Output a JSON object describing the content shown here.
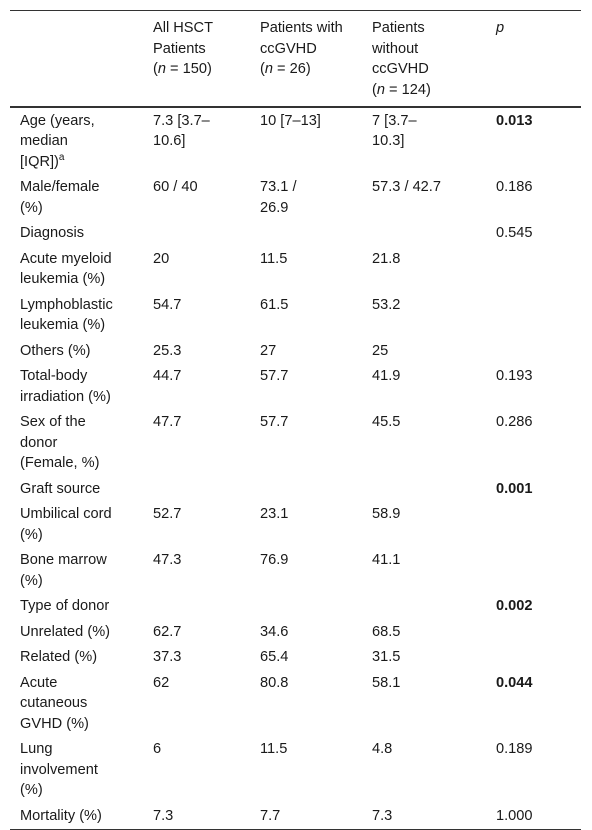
{
  "header": {
    "col0": "",
    "col1": {
      "line1": "All HSCT",
      "line2": "Patients",
      "n_open": "(",
      "n_label": "n",
      "n_value": " = 150)"
    },
    "col2": {
      "line1": "Patients with",
      "line2": "ccGVHD",
      "n_open": "(",
      "n_label": "n",
      "n_value": " = 26)"
    },
    "col3": {
      "line1": "Patients",
      "line2": "without",
      "line3": "ccGVHD",
      "n_open": "(",
      "n_label": "n",
      "n_value": " = 124)"
    },
    "col4": "p"
  },
  "rows": [
    {
      "label": [
        "Age (years,",
        "median",
        "[IQR])"
      ],
      "label_sup": "a",
      "all": [
        "7.3 [3.7–",
        "10.6]"
      ],
      "with": [
        "10 [7–13]"
      ],
      "without": [
        "7 [3.7–",
        "10.3]"
      ],
      "p": "0.013",
      "p_bold": true
    },
    {
      "label": [
        "Male/female",
        "(%)"
      ],
      "all": [
        "60 / 40"
      ],
      "with": [
        "73.1 /",
        "26.9"
      ],
      "without": [
        "57.3 / 42.7"
      ],
      "p": "0.186",
      "p_bold": false
    },
    {
      "label": [
        "Diagnosis"
      ],
      "all": [
        ""
      ],
      "with": [
        ""
      ],
      "without": [
        ""
      ],
      "p": "0.545",
      "p_bold": false
    },
    {
      "label": [
        "Acute myeloid",
        "leukemia (%)"
      ],
      "all": [
        "20"
      ],
      "with": [
        "11.5"
      ],
      "without": [
        "21.8"
      ],
      "p": "",
      "p_bold": false
    },
    {
      "label": [
        "Lymphoblastic",
        "leukemia (%)"
      ],
      "all": [
        "54.7"
      ],
      "with": [
        "61.5"
      ],
      "without": [
        "53.2"
      ],
      "p": "",
      "p_bold": false
    },
    {
      "label": [
        "Others (%)"
      ],
      "all": [
        "25.3"
      ],
      "with": [
        "27"
      ],
      "without": [
        "25"
      ],
      "p": "",
      "p_bold": false
    },
    {
      "label": [
        "Total-body",
        "irradiation (%)"
      ],
      "all": [
        "44.7"
      ],
      "with": [
        "57.7"
      ],
      "without": [
        "41.9"
      ],
      "p": "0.193",
      "p_bold": false
    },
    {
      "label": [
        "Sex of the",
        "donor",
        "(Female, %)"
      ],
      "all": [
        "47.7"
      ],
      "with": [
        "57.7"
      ],
      "without": [
        "45.5"
      ],
      "p": "0.286",
      "p_bold": false
    },
    {
      "label": [
        "Graft source"
      ],
      "all": [
        ""
      ],
      "with": [
        ""
      ],
      "without": [
        ""
      ],
      "p": "0.001",
      "p_bold": true
    },
    {
      "label": [
        "Umbilical cord",
        "(%)"
      ],
      "all": [
        "52.7"
      ],
      "with": [
        "23.1"
      ],
      "without": [
        "58.9"
      ],
      "p": "",
      "p_bold": false
    },
    {
      "label": [
        "Bone marrow",
        "(%)"
      ],
      "all": [
        "47.3"
      ],
      "with": [
        "76.9"
      ],
      "without": [
        "41.1"
      ],
      "p": "",
      "p_bold": false
    },
    {
      "label": [
        "Type of donor"
      ],
      "all": [
        ""
      ],
      "with": [
        ""
      ],
      "without": [
        ""
      ],
      "p": "0.002",
      "p_bold": true
    },
    {
      "label": [
        "Unrelated (%)"
      ],
      "all": [
        "62.7"
      ],
      "with": [
        "34.6"
      ],
      "without": [
        "68.5"
      ],
      "p": "",
      "p_bold": false
    },
    {
      "label": [
        "Related (%)"
      ],
      "all": [
        "37.3"
      ],
      "with": [
        "65.4"
      ],
      "without": [
        "31.5"
      ],
      "p": "",
      "p_bold": false
    },
    {
      "label": [
        "Acute",
        "cutaneous",
        "GVHD (%)"
      ],
      "all": [
        "62"
      ],
      "with": [
        "80.8"
      ],
      "without": [
        "58.1"
      ],
      "p": "0.044",
      "p_bold": true
    },
    {
      "label": [
        "Lung",
        "involvement",
        "(%)"
      ],
      "all": [
        "6"
      ],
      "with": [
        "11.5"
      ],
      "without": [
        "4.8"
      ],
      "p": "0.189",
      "p_bold": false
    },
    {
      "label": [
        "Mortality (%)"
      ],
      "all": [
        "7.3"
      ],
      "with": [
        "7.7"
      ],
      "without": [
        "7.3"
      ],
      "p": "1.000",
      "p_bold": false
    }
  ]
}
